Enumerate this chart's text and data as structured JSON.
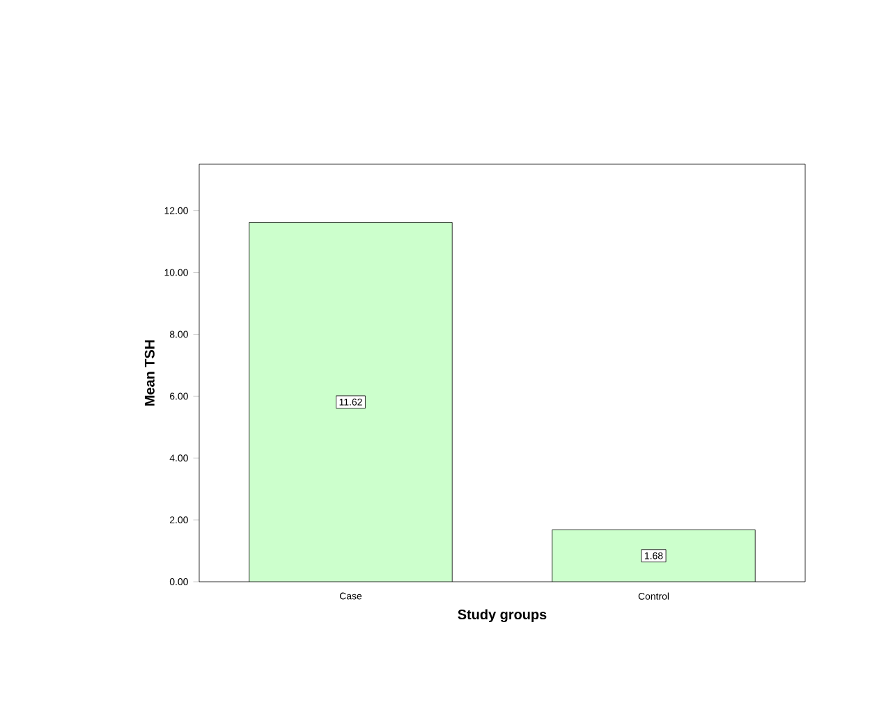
{
  "chart_data": {
    "type": "bar",
    "xlabel": "Study groups",
    "ylabel": "Mean TSH",
    "categories": [
      "Case",
      "Control"
    ],
    "values": [
      11.62,
      1.68
    ],
    "value_labels": [
      "11.62",
      "1.68"
    ],
    "color": "#ccffcc",
    "ylim": [
      0,
      13.5
    ],
    "yticks": [
      {
        "value": 0,
        "label": "0.00"
      },
      {
        "value": 2,
        "label": "2.00"
      },
      {
        "value": 4,
        "label": "4.00"
      },
      {
        "value": 6,
        "label": "6.00"
      },
      {
        "value": 8,
        "label": "8.00"
      },
      {
        "value": 10,
        "label": "10.00"
      },
      {
        "value": 12,
        "label": "12.00"
      }
    ]
  }
}
